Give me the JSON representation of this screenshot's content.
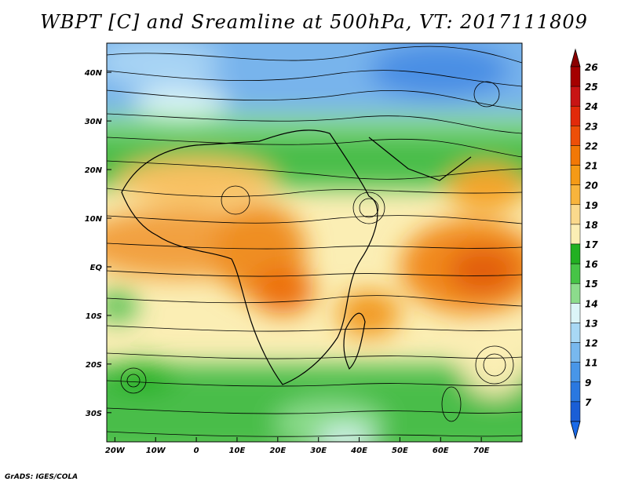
{
  "title": "WBPT [C] and Sreamline at 500hPa, VT: 2017111809",
  "footer": "GrADS: IGES/COLA",
  "map": {
    "lon_range": [
      -22,
      80
    ],
    "lat_range": [
      -36,
      46
    ],
    "lat_ticks": [
      {
        "value": 40,
        "label": "40N"
      },
      {
        "value": 30,
        "label": "30N"
      },
      {
        "value": 20,
        "label": "20N"
      },
      {
        "value": 10,
        "label": "10N"
      },
      {
        "value": 0,
        "label": "EQ"
      },
      {
        "value": -10,
        "label": "10S"
      },
      {
        "value": -20,
        "label": "20S"
      },
      {
        "value": -30,
        "label": "30S"
      }
    ],
    "lon_ticks": [
      {
        "value": -20,
        "label": "20W"
      },
      {
        "value": -10,
        "label": "10W"
      },
      {
        "value": 0,
        "label": "0"
      },
      {
        "value": 10,
        "label": "10E"
      },
      {
        "value": 20,
        "label": "20E"
      },
      {
        "value": 30,
        "label": "30E"
      },
      {
        "value": 40,
        "label": "40E"
      },
      {
        "value": 50,
        "label": "50E"
      },
      {
        "value": 60,
        "label": "60E"
      },
      {
        "value": 70,
        "label": "70E"
      }
    ]
  },
  "colorbar": {
    "labels": [
      "26",
      "25",
      "24",
      "23",
      "22",
      "21",
      "20",
      "19",
      "18",
      "17",
      "16",
      "15",
      "14",
      "13",
      "12",
      "11",
      "9",
      "7"
    ],
    "colors": [
      "#a50000",
      "#c81414",
      "#e22a0a",
      "#ed4f08",
      "#f27806",
      "#f59a16",
      "#f8b43c",
      "#fad98c",
      "#fbeeb4",
      "#22b022",
      "#46c446",
      "#8cdc8c",
      "#dcf5f8",
      "#a8d8f5",
      "#78b8ee",
      "#4896e8",
      "#2a78e0",
      "#1a5ed6"
    ],
    "max_arrow_color": "#8b0000",
    "min_arrow_color": "#1a6ae8"
  }
}
